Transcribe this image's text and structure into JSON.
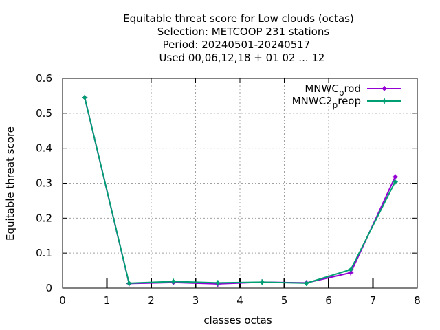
{
  "chart_data": {
    "type": "line",
    "title_lines": [
      "Equitable threat score  for Low clouds (octas)",
      "Selection: METCOOP    231 stations",
      "Period: 20240501-20240517",
      "Used  00,06,12,18 + 01 02 ... 12"
    ],
    "xlabel": "classes octas",
    "ylabel": "Equitable threat score",
    "xlim": [
      0,
      8
    ],
    "ylim": [
      0,
      0.6
    ],
    "x_ticks": [
      "0",
      "1",
      "2",
      "3",
      "4",
      "5",
      "6",
      "7",
      "8"
    ],
    "y_ticks": [
      "0",
      "0.1",
      "0.2",
      "0.3",
      "0.4",
      "0.5",
      "0.6"
    ],
    "grid": true,
    "legend_position": "top-right",
    "x": [
      0.5,
      1.5,
      2.5,
      3.5,
      4.5,
      5.5,
      6.5,
      7.5
    ],
    "series": [
      {
        "legend_main": "MNWC",
        "legend_sub": "p",
        "legend_tail": "rod",
        "color": "#9400d3",
        "values": [
          0.545,
          0.013,
          0.016,
          0.012,
          0.017,
          0.015,
          0.044,
          0.318
        ]
      },
      {
        "legend_main": "MNWC2",
        "legend_sub": "p",
        "legend_tail": "reop",
        "color": "#009e73",
        "values": [
          0.545,
          0.014,
          0.019,
          0.015,
          0.017,
          0.014,
          0.053,
          0.304
        ]
      }
    ]
  }
}
